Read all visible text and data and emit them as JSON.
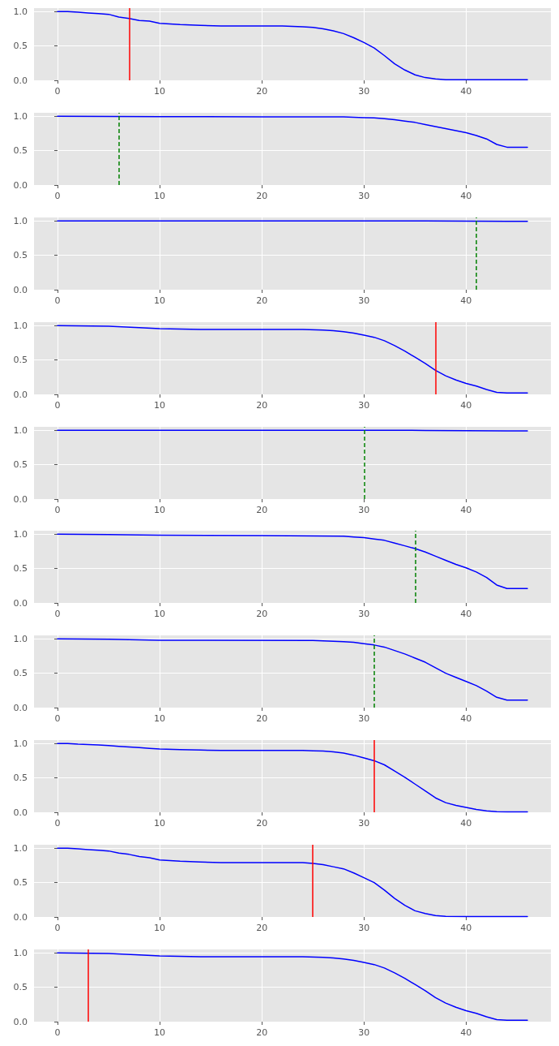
{
  "chart_data": [
    {
      "type": "line",
      "x": [
        0,
        1,
        2,
        3,
        4,
        5,
        6,
        7,
        8,
        9,
        10,
        12,
        14,
        16,
        18,
        20,
        22,
        24,
        25,
        26,
        27,
        28,
        29,
        30,
        31,
        32,
        33,
        34,
        35,
        36,
        37,
        38,
        39,
        40,
        42,
        44,
        46
      ],
      "series": [
        {
          "color": "#0000ff",
          "values": [
            1.0,
            1.0,
            0.99,
            0.98,
            0.97,
            0.96,
            0.92,
            0.9,
            0.87,
            0.86,
            0.83,
            0.81,
            0.8,
            0.79,
            0.79,
            0.79,
            0.79,
            0.78,
            0.77,
            0.75,
            0.72,
            0.68,
            0.62,
            0.55,
            0.47,
            0.36,
            0.24,
            0.15,
            0.08,
            0.04,
            0.02,
            0.01,
            0.01,
            0.01,
            0.01,
            0.01,
            0.01
          ]
        }
      ],
      "ref_lines": [
        {
          "axis": "x",
          "value": 7,
          "color": "#ff0000",
          "line_style": "solid"
        }
      ],
      "xlim": [
        -2.3,
        48.3
      ],
      "xticks": [
        0,
        10,
        20,
        30,
        40
      ],
      "ylim": [
        0,
        1.05
      ],
      "yticks": [
        {
          "value": 0,
          "label": "0.0"
        },
        {
          "value": 0.5,
          "label": "0.5"
        },
        {
          "value": 1,
          "label": "1.0"
        }
      ],
      "grid": true,
      "marker": "none",
      "line_style": "solid"
    },
    {
      "type": "line",
      "x": [
        0,
        10,
        20,
        28,
        30,
        31,
        32,
        33,
        34,
        35,
        36,
        37,
        38,
        39,
        40,
        41,
        42,
        43,
        44,
        46
      ],
      "series": [
        {
          "color": "#0000ff",
          "values": [
            1.0,
            0.995,
            0.99,
            0.99,
            0.98,
            0.975,
            0.965,
            0.95,
            0.93,
            0.91,
            0.88,
            0.85,
            0.82,
            0.79,
            0.76,
            0.72,
            0.67,
            0.59,
            0.55,
            0.55
          ]
        }
      ],
      "ref_lines": [
        {
          "axis": "x",
          "value": 6,
          "color": "#008000",
          "line_style": "dashed"
        }
      ],
      "xlim": [
        -2.3,
        48.3
      ],
      "xticks": [
        0,
        10,
        20,
        30,
        40
      ],
      "ylim": [
        0,
        1.05
      ],
      "yticks": [
        {
          "value": 0,
          "label": "0.0"
        },
        {
          "value": 0.5,
          "label": "0.5"
        },
        {
          "value": 1,
          "label": "1.0"
        }
      ],
      "grid": true,
      "marker": "none",
      "line_style": "solid"
    },
    {
      "type": "line",
      "x": [
        0,
        20,
        36,
        40,
        44,
        46
      ],
      "series": [
        {
          "color": "#0000ff",
          "values": [
            1.0,
            1.0,
            1.0,
            0.998,
            0.995,
            0.995
          ]
        }
      ],
      "ref_lines": [
        {
          "axis": "x",
          "value": 41,
          "color": "#008000",
          "line_style": "dashed"
        }
      ],
      "xlim": [
        -2.3,
        48.3
      ],
      "xticks": [
        0,
        10,
        20,
        30,
        40
      ],
      "ylim": [
        0,
        1.05
      ],
      "yticks": [
        {
          "value": 0,
          "label": "0.0"
        },
        {
          "value": 0.5,
          "label": "0.5"
        },
        {
          "value": 1,
          "label": "1.0"
        }
      ],
      "grid": true,
      "marker": "none",
      "line_style": "solid"
    },
    {
      "type": "line",
      "x": [
        0,
        5,
        8,
        10,
        12,
        14,
        24,
        26,
        27,
        28,
        29,
        30,
        31,
        32,
        33,
        34,
        35,
        36,
        37,
        38,
        39,
        40,
        41,
        42,
        43,
        44,
        46
      ],
      "series": [
        {
          "color": "#0000ff",
          "values": [
            1.0,
            0.99,
            0.97,
            0.955,
            0.95,
            0.945,
            0.945,
            0.935,
            0.925,
            0.91,
            0.89,
            0.86,
            0.83,
            0.78,
            0.71,
            0.63,
            0.54,
            0.45,
            0.35,
            0.27,
            0.21,
            0.16,
            0.12,
            0.07,
            0.03,
            0.02,
            0.02
          ]
        }
      ],
      "ref_lines": [
        {
          "axis": "x",
          "value": 37,
          "color": "#ff0000",
          "line_style": "solid"
        }
      ],
      "xlim": [
        -2.3,
        48.3
      ],
      "xticks": [
        0,
        10,
        20,
        30,
        40
      ],
      "ylim": [
        0,
        1.05
      ],
      "yticks": [
        {
          "value": 0,
          "label": "0.0"
        },
        {
          "value": 0.5,
          "label": "0.5"
        },
        {
          "value": 1,
          "label": "1.0"
        }
      ],
      "grid": true,
      "marker": "none",
      "line_style": "solid"
    },
    {
      "type": "line",
      "x": [
        0,
        20,
        30,
        36,
        40,
        44,
        46
      ],
      "series": [
        {
          "color": "#0000ff",
          "values": [
            1.0,
            1.0,
            1.0,
            0.998,
            0.995,
            0.99,
            0.99
          ]
        }
      ],
      "ref_lines": [
        {
          "axis": "x",
          "value": 30,
          "color": "#008000",
          "line_style": "dashed"
        }
      ],
      "xlim": [
        -2.3,
        48.3
      ],
      "xticks": [
        0,
        10,
        20,
        30,
        40
      ],
      "ylim": [
        0,
        1.05
      ],
      "yticks": [
        {
          "value": 0,
          "label": "0.0"
        },
        {
          "value": 0.5,
          "label": "0.5"
        },
        {
          "value": 1,
          "label": "1.0"
        }
      ],
      "grid": true,
      "marker": "none",
      "line_style": "solid"
    },
    {
      "type": "line",
      "x": [
        0,
        5,
        10,
        20,
        28,
        29,
        30,
        31,
        32,
        33,
        34,
        35,
        36,
        37,
        38,
        39,
        40,
        41,
        42,
        43,
        44,
        46
      ],
      "series": [
        {
          "color": "#0000ff",
          "values": [
            1.0,
            0.995,
            0.985,
            0.98,
            0.97,
            0.96,
            0.95,
            0.93,
            0.91,
            0.87,
            0.83,
            0.79,
            0.74,
            0.68,
            0.62,
            0.56,
            0.51,
            0.45,
            0.37,
            0.26,
            0.21,
            0.21
          ]
        }
      ],
      "ref_lines": [
        {
          "axis": "x",
          "value": 35,
          "color": "#008000",
          "line_style": "dashed"
        }
      ],
      "xlim": [
        -2.3,
        48.3
      ],
      "xticks": [
        0,
        10,
        20,
        30,
        40
      ],
      "ylim": [
        0,
        1.05
      ],
      "yticks": [
        {
          "value": 0,
          "label": "0.0"
        },
        {
          "value": 0.5,
          "label": "0.5"
        },
        {
          "value": 1,
          "label": "1.0"
        }
      ],
      "grid": true,
      "marker": "none",
      "line_style": "solid"
    },
    {
      "type": "line",
      "x": [
        0,
        5,
        10,
        25,
        28,
        29,
        30,
        31,
        32,
        33,
        34,
        35,
        36,
        37,
        38,
        39,
        40,
        41,
        42,
        43,
        44,
        46
      ],
      "series": [
        {
          "color": "#0000ff",
          "values": [
            1.0,
            0.995,
            0.98,
            0.975,
            0.96,
            0.95,
            0.93,
            0.91,
            0.88,
            0.83,
            0.78,
            0.72,
            0.66,
            0.58,
            0.5,
            0.44,
            0.38,
            0.32,
            0.24,
            0.15,
            0.11,
            0.11
          ]
        }
      ],
      "ref_lines": [
        {
          "axis": "x",
          "value": 31,
          "color": "#008000",
          "line_style": "dashed"
        }
      ],
      "xlim": [
        -2.3,
        48.3
      ],
      "xticks": [
        0,
        10,
        20,
        30,
        40
      ],
      "ylim": [
        0,
        1.05
      ],
      "yticks": [
        {
          "value": 0,
          "label": "0.0"
        },
        {
          "value": 0.5,
          "label": "0.5"
        },
        {
          "value": 1,
          "label": "1.0"
        }
      ],
      "grid": true,
      "marker": "none",
      "line_style": "solid"
    },
    {
      "type": "line",
      "x": [
        0,
        1,
        2,
        3,
        4,
        5,
        6,
        7,
        8,
        9,
        10,
        12,
        14,
        16,
        24,
        25,
        26,
        27,
        28,
        29,
        30,
        31,
        32,
        33,
        34,
        35,
        36,
        37,
        38,
        39,
        40,
        41,
        42,
        43,
        44,
        46
      ],
      "series": [
        {
          "color": "#0000ff",
          "values": [
            1.0,
            1.0,
            0.99,
            0.985,
            0.98,
            0.97,
            0.96,
            0.95,
            0.94,
            0.93,
            0.92,
            0.91,
            0.905,
            0.9,
            0.9,
            0.895,
            0.89,
            0.88,
            0.86,
            0.83,
            0.79,
            0.75,
            0.69,
            0.6,
            0.51,
            0.41,
            0.31,
            0.21,
            0.14,
            0.1,
            0.07,
            0.04,
            0.02,
            0.01,
            0.005,
            0.005
          ]
        }
      ],
      "ref_lines": [
        {
          "axis": "x",
          "value": 31,
          "color": "#ff0000",
          "line_style": "solid"
        }
      ],
      "xlim": [
        -2.3,
        48.3
      ],
      "xticks": [
        0,
        10,
        20,
        30,
        40
      ],
      "ylim": [
        0,
        1.05
      ],
      "yticks": [
        {
          "value": 0,
          "label": "0.0"
        },
        {
          "value": 0.5,
          "label": "0.5"
        },
        {
          "value": 1,
          "label": "1.0"
        }
      ],
      "grid": true,
      "marker": "none",
      "line_style": "solid"
    },
    {
      "type": "line",
      "x": [
        0,
        1,
        2,
        3,
        4,
        5,
        6,
        7,
        8,
        9,
        10,
        12,
        14,
        16,
        24,
        25,
        26,
        27,
        28,
        29,
        30,
        31,
        32,
        33,
        34,
        35,
        36,
        37,
        38,
        40,
        46
      ],
      "series": [
        {
          "color": "#0000ff",
          "values": [
            1.0,
            1.0,
            0.99,
            0.98,
            0.97,
            0.96,
            0.93,
            0.91,
            0.88,
            0.86,
            0.83,
            0.81,
            0.8,
            0.79,
            0.79,
            0.78,
            0.76,
            0.73,
            0.7,
            0.64,
            0.57,
            0.5,
            0.39,
            0.27,
            0.17,
            0.09,
            0.05,
            0.02,
            0.01,
            0.005,
            0.005
          ]
        }
      ],
      "ref_lines": [
        {
          "axis": "x",
          "value": 25,
          "color": "#ff0000",
          "line_style": "solid"
        }
      ],
      "xlim": [
        -2.3,
        48.3
      ],
      "xticks": [
        0,
        10,
        20,
        30,
        40
      ],
      "ylim": [
        0,
        1.05
      ],
      "yticks": [
        {
          "value": 0,
          "label": "0.0"
        },
        {
          "value": 0.5,
          "label": "0.5"
        },
        {
          "value": 1,
          "label": "1.0"
        }
      ],
      "grid": true,
      "marker": "none",
      "line_style": "solid"
    },
    {
      "type": "line",
      "x": [
        0,
        5,
        8,
        10,
        12,
        14,
        24,
        26,
        27,
        28,
        29,
        30,
        31,
        32,
        33,
        34,
        35,
        36,
        37,
        38,
        39,
        40,
        41,
        42,
        43,
        44,
        46
      ],
      "series": [
        {
          "color": "#0000ff",
          "values": [
            1.0,
            0.99,
            0.97,
            0.955,
            0.95,
            0.945,
            0.945,
            0.935,
            0.925,
            0.91,
            0.89,
            0.86,
            0.83,
            0.78,
            0.71,
            0.63,
            0.54,
            0.45,
            0.35,
            0.27,
            0.21,
            0.16,
            0.12,
            0.07,
            0.03,
            0.02,
            0.02
          ]
        }
      ],
      "ref_lines": [
        {
          "axis": "x",
          "value": 3,
          "color": "#ff0000",
          "line_style": "solid"
        }
      ],
      "xlim": [
        -2.3,
        48.3
      ],
      "xticks": [
        0,
        10,
        20,
        30,
        40
      ],
      "ylim": [
        0,
        1.05
      ],
      "yticks": [
        {
          "value": 0,
          "label": "0.0"
        },
        {
          "value": 0.5,
          "label": "0.5"
        },
        {
          "value": 1,
          "label": "1.0"
        }
      ],
      "grid": true,
      "marker": "none",
      "line_style": "solid"
    }
  ]
}
